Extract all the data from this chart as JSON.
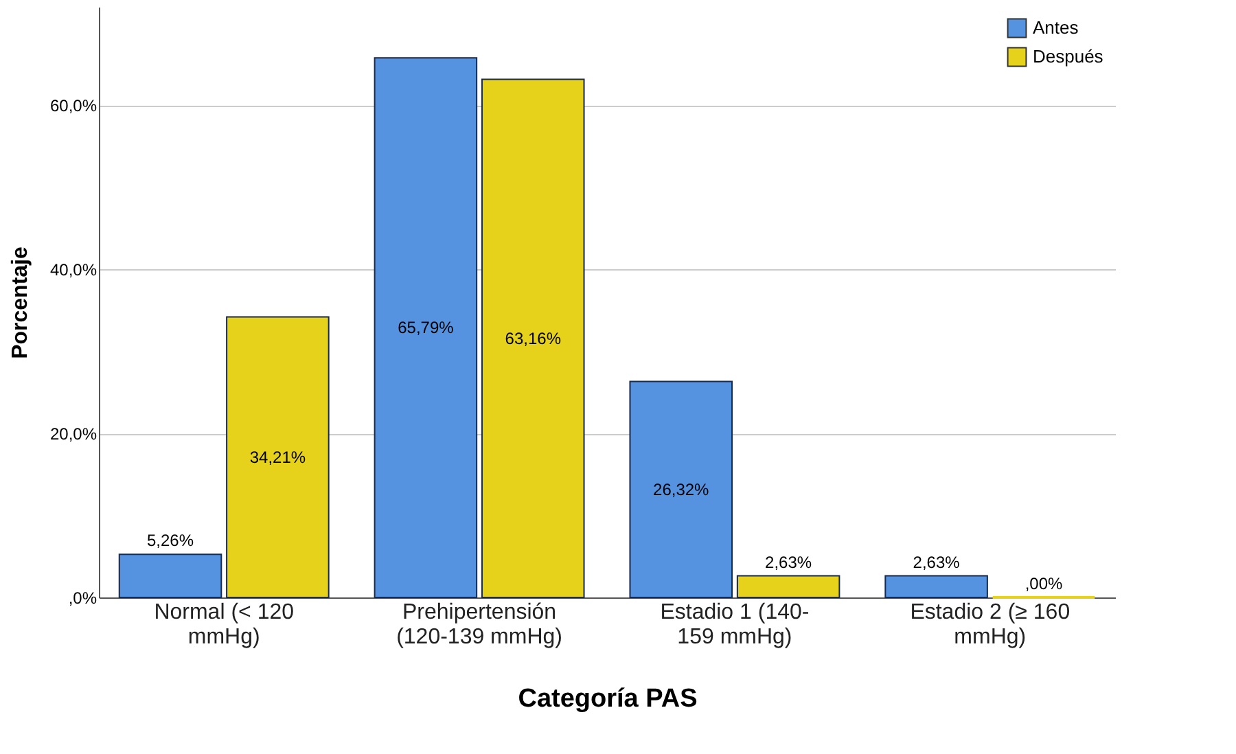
{
  "chart_data": {
    "type": "bar",
    "xlabel": "Categoría PAS",
    "ylabel": "Porcentaje",
    "categories": [
      "Normal (< 120 mmHg)",
      "Prehipertensión (120-139 mmHg)",
      "Estadio 1 (140-159 mmHg)",
      "Estadio 2 (≥ 160 mmHg)"
    ],
    "series": [
      {
        "name": "Antes",
        "color": "#5592e0",
        "values": [
          5.26,
          65.79,
          26.32,
          2.63
        ],
        "value_labels": [
          "5,26%",
          "65,79%",
          "26,32%",
          "2,63%"
        ]
      },
      {
        "name": "Después",
        "color": "#e6d21a",
        "values": [
          34.21,
          63.16,
          2.63,
          0
        ],
        "value_labels": [
          "34,21%",
          "63,16%",
          "2,63%",
          ",00%"
        ]
      }
    ],
    "ylim": [
      0,
      72
    ],
    "yticks": [
      {
        "value": 0,
        "label": ",0%"
      },
      {
        "value": 20,
        "label": "20,0%"
      },
      {
        "value": 40,
        "label": "40,0%"
      },
      {
        "value": 60,
        "label": "60,0%"
      }
    ],
    "grid": "y",
    "legend": "top right"
  }
}
